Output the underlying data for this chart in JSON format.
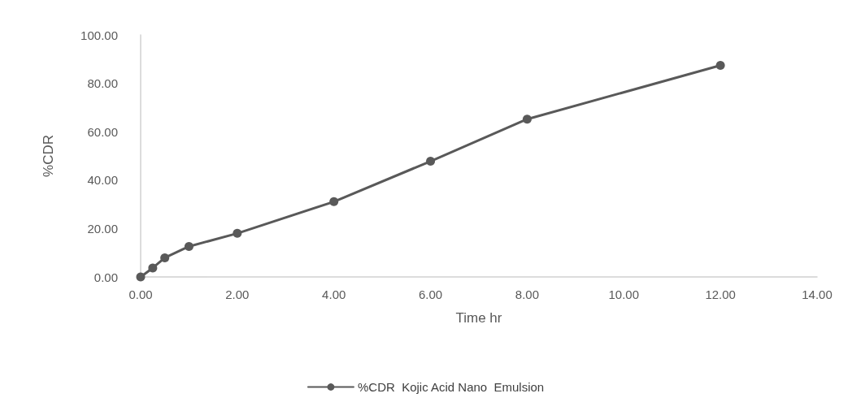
{
  "chart_data": {
    "type": "line",
    "xlabel": "Time hr",
    "ylabel": "%CDR",
    "x": [
      0,
      0.25,
      0.5,
      1,
      2,
      4,
      6,
      8,
      12
    ],
    "series": [
      {
        "name": "%CDR  Kojic Acid Nano  Emulsion",
        "color": "#595959",
        "values": [
          0,
          3.7,
          7.9,
          12.6,
          18.0,
          31.1,
          47.8,
          65.2,
          87.4
        ]
      }
    ],
    "xlim": [
      0,
      14
    ],
    "xticks": [
      {
        "value": 0,
        "label": "0.00"
      },
      {
        "value": 2,
        "label": "2.00"
      },
      {
        "value": 4,
        "label": "4.00"
      },
      {
        "value": 6,
        "label": "6.00"
      },
      {
        "value": 8,
        "label": "8.00"
      },
      {
        "value": 10,
        "label": "10.00"
      },
      {
        "value": 12,
        "label": "12.00"
      },
      {
        "value": 14,
        "label": "14.00"
      }
    ],
    "ylim": [
      0,
      100
    ],
    "yticks": [
      {
        "value": 0,
        "label": "0.00"
      },
      {
        "value": 20,
        "label": "20.00"
      },
      {
        "value": 40,
        "label": "40.00"
      },
      {
        "value": 60,
        "label": "60.00"
      },
      {
        "value": 80,
        "label": "80.00"
      },
      {
        "value": 100,
        "label": "100.00"
      }
    ],
    "grid": false,
    "legend": "bottom",
    "marker": "circle",
    "line_style": "solid"
  }
}
